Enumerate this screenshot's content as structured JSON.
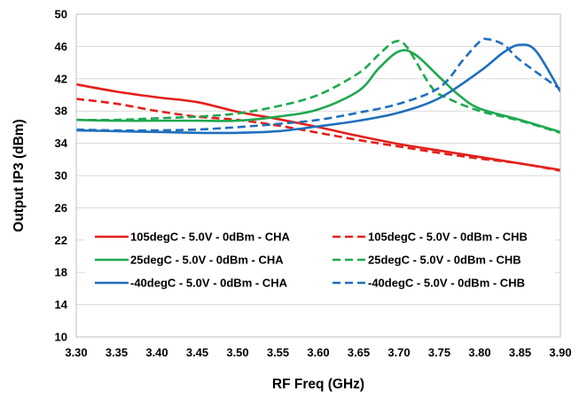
{
  "chart_data": {
    "type": "line",
    "title": "",
    "xlabel": "RF Freq (GHz)",
    "ylabel": "Output IP3 (dBm)",
    "xlim": [
      3.3,
      3.9
    ],
    "ylim": [
      10,
      50
    ],
    "x_ticks": [
      "3.30",
      "3.35",
      "3.40",
      "3.45",
      "3.50",
      "3.55",
      "3.60",
      "3.65",
      "3.70",
      "3.75",
      "3.80",
      "3.85",
      "3.90"
    ],
    "y_ticks": [
      "10",
      "14",
      "18",
      "22",
      "26",
      "30",
      "34",
      "38",
      "42",
      "46",
      "50"
    ],
    "grid": "horizontal",
    "legend_placement": "inside-bottom",
    "series": [
      {
        "name": "105degC - 5.0V - 0dBm - CHA",
        "color": "#e3201b",
        "dashed": false,
        "points": [
          [
            3.3,
            41.3
          ],
          [
            3.35,
            40.4
          ],
          [
            3.4,
            39.7
          ],
          [
            3.45,
            39.1
          ],
          [
            3.5,
            37.9
          ],
          [
            3.55,
            37.0
          ],
          [
            3.6,
            36.0
          ],
          [
            3.65,
            34.9
          ],
          [
            3.7,
            33.9
          ],
          [
            3.75,
            33.1
          ],
          [
            3.8,
            32.3
          ],
          [
            3.85,
            31.5
          ],
          [
            3.9,
            30.7
          ]
        ]
      },
      {
        "name": "105degC - 5.0V - 0dBm - CHB",
        "color": "#e3201b",
        "dashed": true,
        "points": [
          [
            3.3,
            39.5
          ],
          [
            3.35,
            38.9
          ],
          [
            3.4,
            38.0
          ],
          [
            3.45,
            37.3
          ],
          [
            3.5,
            36.9
          ],
          [
            3.55,
            36.2
          ],
          [
            3.6,
            35.3
          ],
          [
            3.65,
            34.4
          ],
          [
            3.7,
            33.6
          ],
          [
            3.75,
            32.8
          ],
          [
            3.8,
            32.1
          ],
          [
            3.85,
            31.5
          ],
          [
            3.9,
            30.6
          ]
        ]
      },
      {
        "name": "25degC - 5.0V - 0dBm - CHA",
        "color": "#1fa84f",
        "dashed": false,
        "points": [
          [
            3.3,
            36.9
          ],
          [
            3.35,
            36.8
          ],
          [
            3.4,
            36.8
          ],
          [
            3.45,
            36.8
          ],
          [
            3.5,
            36.8
          ],
          [
            3.55,
            37.3
          ],
          [
            3.6,
            38.2
          ],
          [
            3.65,
            40.5
          ],
          [
            3.675,
            43.3
          ],
          [
            3.7,
            45.4
          ],
          [
            3.72,
            45.0
          ],
          [
            3.75,
            42.2
          ],
          [
            3.775,
            39.9
          ],
          [
            3.8,
            38.3
          ],
          [
            3.85,
            36.9
          ],
          [
            3.9,
            35.4
          ]
        ]
      },
      {
        "name": "25degC - 5.0V - 0dBm - CHB",
        "color": "#1fa84f",
        "dashed": true,
        "points": [
          [
            3.3,
            36.9
          ],
          [
            3.35,
            36.9
          ],
          [
            3.4,
            37.1
          ],
          [
            3.45,
            37.3
          ],
          [
            3.5,
            37.7
          ],
          [
            3.55,
            38.6
          ],
          [
            3.6,
            40.0
          ],
          [
            3.65,
            42.7
          ],
          [
            3.675,
            45.0
          ],
          [
            3.695,
            46.6
          ],
          [
            3.71,
            45.9
          ],
          [
            3.74,
            41.0
          ],
          [
            3.76,
            39.6
          ],
          [
            3.8,
            38.0
          ],
          [
            3.85,
            36.8
          ],
          [
            3.9,
            35.3
          ]
        ]
      },
      {
        "name": "-40degC - 5.0V - 0dBm - CHA",
        "color": "#1f6fbd",
        "dashed": false,
        "points": [
          [
            3.3,
            35.6
          ],
          [
            3.35,
            35.5
          ],
          [
            3.4,
            35.4
          ],
          [
            3.45,
            35.3
          ],
          [
            3.5,
            35.3
          ],
          [
            3.55,
            35.5
          ],
          [
            3.6,
            36.1
          ],
          [
            3.65,
            36.8
          ],
          [
            3.7,
            37.8
          ],
          [
            3.75,
            39.6
          ],
          [
            3.8,
            42.9
          ],
          [
            3.83,
            45.3
          ],
          [
            3.85,
            46.2
          ],
          [
            3.87,
            45.4
          ],
          [
            3.9,
            40.4
          ]
        ]
      },
      {
        "name": "-40degC - 5.0V - 0dBm - CHB",
        "color": "#1f6fbd",
        "dashed": true,
        "points": [
          [
            3.3,
            35.7
          ],
          [
            3.35,
            35.6
          ],
          [
            3.4,
            35.6
          ],
          [
            3.45,
            35.7
          ],
          [
            3.5,
            36.0
          ],
          [
            3.55,
            36.4
          ],
          [
            3.6,
            36.9
          ],
          [
            3.65,
            37.8
          ],
          [
            3.7,
            38.9
          ],
          [
            3.75,
            40.9
          ],
          [
            3.78,
            44.4
          ],
          [
            3.8,
            46.6
          ],
          [
            3.81,
            46.9
          ],
          [
            3.83,
            46.2
          ],
          [
            3.85,
            44.3
          ],
          [
            3.9,
            40.7
          ]
        ]
      }
    ]
  }
}
